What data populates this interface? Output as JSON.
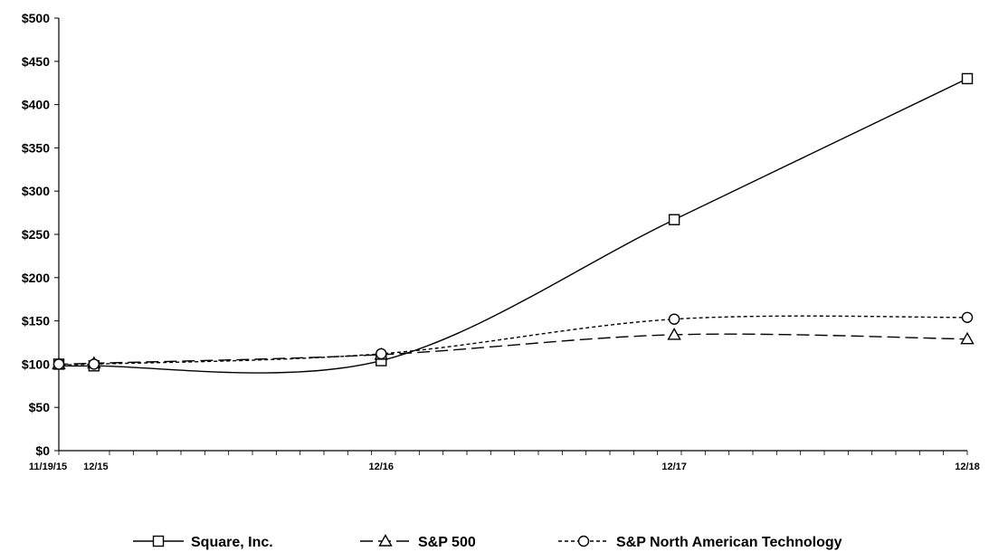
{
  "chart_data": {
    "type": "line",
    "x": [
      "11/19/15",
      "12/15",
      "12/16",
      "12/17",
      "12/18"
    ],
    "x_positions": [
      0,
      0.12,
      1.1,
      2.1,
      3.1
    ],
    "xlim": [
      0,
      3.1
    ],
    "ylim": [
      0,
      500
    ],
    "y_ticks": [
      "$0",
      "$50",
      "$100",
      "$150",
      "$200",
      "$250",
      "$300",
      "$350",
      "$400",
      "$450",
      "$500"
    ],
    "y_tick_values": [
      0,
      50,
      100,
      150,
      200,
      250,
      300,
      350,
      400,
      450,
      500
    ],
    "title": "",
    "xlabel": "",
    "ylabel": "",
    "grid": false,
    "legend_position": "bottom",
    "series": [
      {
        "name": "Square, Inc.",
        "values": [
          100,
          98,
          104,
          267,
          430
        ],
        "marker": "square",
        "dash": "solid"
      },
      {
        "name": "S&P 500",
        "values": [
          100,
          101,
          111,
          134,
          129
        ],
        "marker": "triangle",
        "dash": "dashed"
      },
      {
        "name": "S&P North American Technology",
        "values": [
          100,
          100,
          112,
          152,
          154
        ],
        "marker": "circle",
        "dash": "dotted"
      }
    ],
    "colors": {
      "line": "#000000",
      "axis": "#000000",
      "background": "#ffffff"
    }
  }
}
